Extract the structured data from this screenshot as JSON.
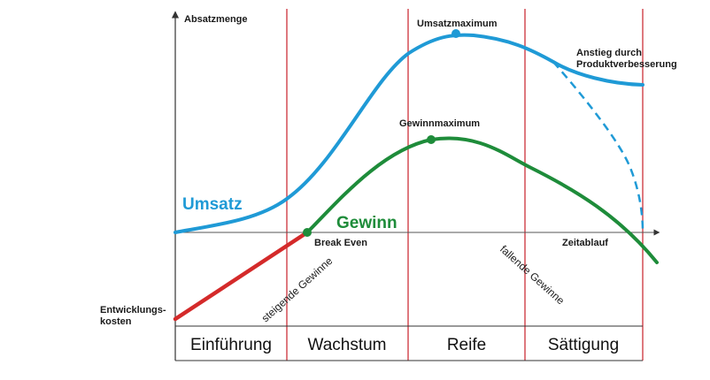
{
  "axes": {
    "y_label": "Absatzmenge",
    "x_label": "Zeitablauf"
  },
  "phases": [
    "Einführung",
    "Wachstum",
    "Reife",
    "Sättigung"
  ],
  "labels": {
    "umsatz": "Umsatz",
    "gewinn": "Gewinn",
    "umsatzmaximum": "Umsatzmaximum",
    "gewinnmaximum": "Gewinnmaximum",
    "break_even": "Break Even",
    "anstieg_line1": "Anstieg durch",
    "anstieg_line2": "Produktverbesserung",
    "entwicklung_line1": "Entwicklungs-",
    "entwicklung_line2": "kosten",
    "steigende_gewinne": "steigende Gewinne",
    "fallende_gewinne": "fallende Gewinne"
  },
  "colors": {
    "umsatz": "#1f9ad6",
    "gewinn": "#1e8c3a",
    "entwicklung": "#d42a2a",
    "phase_line": "#c8202a",
    "axis": "#333333"
  }
}
